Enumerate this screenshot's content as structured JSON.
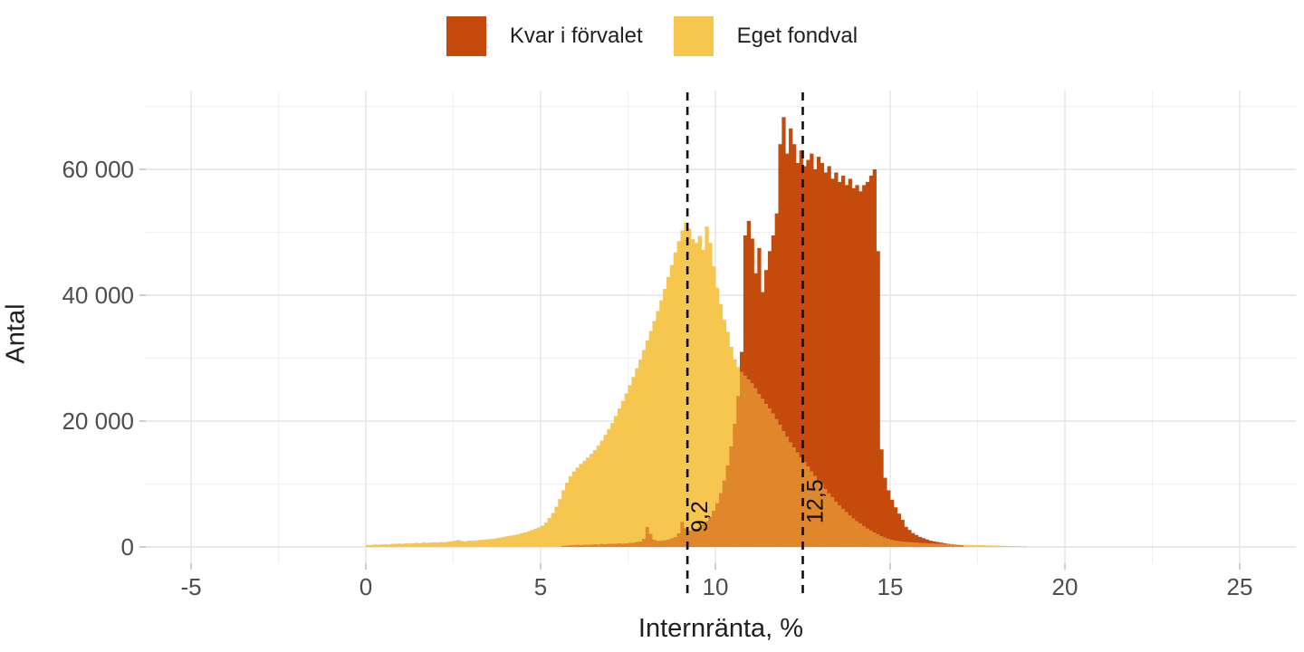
{
  "legend": {
    "items": [
      {
        "label": "Kvar i förvalet",
        "color": "#C54B0C"
      },
      {
        "label": "Eget fondval",
        "color": "#F7C64F"
      }
    ]
  },
  "colors": {
    "red": "#C54B0C",
    "yellow": "#F7C64F",
    "overlap": "#E0872B",
    "grid_major": "#E3E3E3",
    "grid_minor": "#F1F1F1",
    "tick_mark": "#BDBDBD",
    "tick_label": "#4D4D4D",
    "axis_title": "#1F1F1F",
    "annotation": "#0D0D0D"
  },
  "chart_data": {
    "type": "histogram",
    "title": "",
    "xlabel": "Internränta, %",
    "ylabel": "Antal",
    "x_tick_values": [
      -5,
      0,
      5,
      10,
      15,
      20,
      25
    ],
    "x_tick_labels": [
      "-5",
      "0",
      "5",
      "10",
      "15",
      "20",
      "25"
    ],
    "x_minor_values": [
      -2.5,
      2.5,
      7.5,
      12.5,
      17.5,
      22.5
    ],
    "y_tick_values": [
      0,
      20000,
      40000,
      60000
    ],
    "y_tick_labels": [
      "0",
      "20 000",
      "40 000",
      "60 000"
    ],
    "y_minor_values": [
      10000,
      30000,
      50000,
      70000
    ],
    "xlim": [
      -6.3,
      26.6
    ],
    "ylim": [
      0,
      72500
    ],
    "grid": true,
    "legend_position": "top",
    "bin_width": 0.1,
    "annotations": [
      {
        "x": 9.2,
        "label": "9,2"
      },
      {
        "x": 12.5,
        "label": "12,5"
      }
    ],
    "series": [
      {
        "name": "Eget fondval",
        "color": "#F7C64F",
        "mean": 9.2,
        "bins_start": 0.0,
        "counts": [
          300,
          300,
          400,
          350,
          400,
          450,
          400,
          500,
          500,
          550,
          500,
          600,
          550,
          600,
          650,
          600,
          700,
          650,
          700,
          750,
          700,
          800,
          750,
          850,
          900,
          1000,
          1100,
          950,
          900,
          1000,
          1000,
          1050,
          1100,
          1150,
          1200,
          1250,
          1300,
          1400,
          1500,
          1600,
          1700,
          1800,
          1900,
          2000,
          2200,
          2300,
          2500,
          2700,
          2900,
          3100,
          3400,
          3900,
          4600,
          5400,
          6400,
          7600,
          9000,
          10200,
          11200,
          12000,
          12600,
          13200,
          13700,
          14200,
          14800,
          15400,
          16100,
          16900,
          17800,
          18700,
          19700,
          20800,
          22000,
          23200,
          24400,
          25700,
          27000,
          28400,
          29800,
          31300,
          32800,
          34300,
          35900,
          37500,
          39200,
          41000,
          42900,
          44800,
          46800,
          48600,
          50300,
          51500,
          50600,
          48900,
          48300,
          49400,
          47200,
          50900,
          48300,
          44600,
          41200,
          38600,
          36100,
          34200,
          31800,
          29800,
          28600,
          27800,
          27200,
          26600,
          26000,
          25200,
          24300,
          23500,
          22700,
          22000,
          21200,
          20300,
          19400,
          18400,
          17500,
          16600,
          15800,
          15000,
          14200,
          13500,
          12800,
          12000,
          11300,
          10600,
          9900,
          9200,
          8500,
          7900,
          7200,
          6600,
          6000,
          5500,
          5000,
          4500,
          4100,
          3700,
          3300,
          2900,
          2600,
          2300,
          2000,
          1700,
          1500,
          1300,
          1100,
          1000,
          900,
          850,
          800,
          750,
          700,
          680,
          650,
          600,
          580,
          550,
          520,
          500,
          480,
          450,
          430,
          400,
          380,
          360,
          350,
          330,
          300,
          300,
          280,
          280,
          260,
          250,
          240,
          220,
          200,
          200,
          180,
          160,
          150,
          140,
          120,
          100,
          100
        ]
      },
      {
        "name": "Kvar i förvalet",
        "color": "#C54B0C",
        "mean": 12.5,
        "bins_start": 5.6,
        "counts": [
          200,
          250,
          300,
          300,
          350,
          300,
          400,
          350,
          400,
          450,
          400,
          500,
          450,
          500,
          550,
          500,
          600,
          550,
          600,
          650,
          700,
          800,
          900,
          1300,
          3200,
          2100,
          1200,
          1000,
          1000,
          1100,
          1200,
          1400,
          1600,
          2200,
          4000,
          3000,
          2600,
          2700,
          2900,
          3200,
          3600,
          4100,
          4800,
          5800,
          7000,
          8600,
          10600,
          13000,
          16000,
          19600,
          24000,
          31000,
          49500,
          51800,
          49000,
          43500,
          47500,
          40500,
          44000,
          47000,
          49500,
          53000,
          64000,
          68300,
          62500,
          66500,
          64000,
          61000,
          63000,
          60500,
          61500,
          62500,
          60000,
          62000,
          61000,
          59500,
          60500,
          58500,
          59500,
          58000,
          59000,
          57500,
          58500,
          57000,
          57500,
          56500,
          57500,
          58000,
          59000,
          60000,
          47000,
          15500,
          11000,
          9000,
          7500,
          6300,
          5300,
          4300,
          3200,
          2700,
          2200,
          1900,
          1600,
          1400,
          1200,
          1000,
          900,
          800,
          700,
          600,
          500,
          450,
          400,
          350,
          300
        ]
      }
    ]
  }
}
